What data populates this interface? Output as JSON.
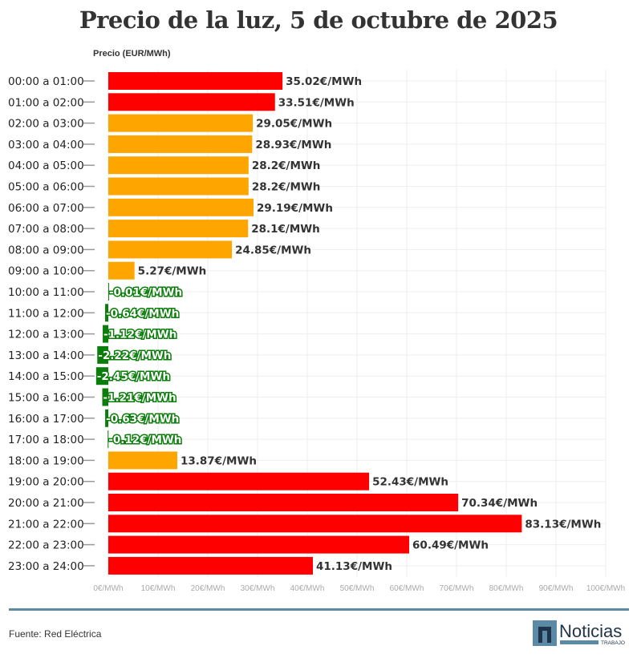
{
  "chart_data": {
    "type": "bar",
    "orientation": "horizontal",
    "title": "Precio de la luz, 5 de octubre de 2025",
    "ylabel": "Precio (EUR/MWh)",
    "xlim": [
      0,
      100
    ],
    "xticks": [
      "0€/MWh",
      "10€/MWh",
      "20€/MWh",
      "30€/MWh",
      "40€/MWh",
      "50€/MWh",
      "60€/MWh",
      "70€/MWh",
      "80€/MWh",
      "90€/MWh",
      "100€/MWh"
    ],
    "grid": true,
    "categories": [
      "00:00 a 01:00",
      "01:00 a 02:00",
      "02:00 a 03:00",
      "03:00 a 04:00",
      "04:00 a 05:00",
      "05:00 a 06:00",
      "06:00 a 07:00",
      "07:00 a 08:00",
      "08:00 a 09:00",
      "09:00 a 10:00",
      "10:00 a 11:00",
      "11:00 a 12:00",
      "12:00 a 13:00",
      "13:00 a 14:00",
      "14:00 a 15:00",
      "15:00 a 16:00",
      "16:00 a 17:00",
      "17:00 a 18:00",
      "18:00 a 19:00",
      "19:00 a 20:00",
      "20:00 a 21:00",
      "21:00 a 22:00",
      "22:00 a 23:00",
      "23:00 a 24:00"
    ],
    "values": [
      35.02,
      33.51,
      29.05,
      28.93,
      28.2,
      28.2,
      29.19,
      28.1,
      24.85,
      5.27,
      -0.01,
      -0.64,
      -1.12,
      -2.22,
      -2.45,
      -1.21,
      -0.63,
      -0.12,
      13.87,
      52.43,
      70.34,
      83.13,
      60.49,
      41.13
    ],
    "data_labels": [
      "35.02€/MWh",
      "33.51€/MWh",
      "29.05€/MWh",
      "28.93€/MWh",
      "28.2€/MWh",
      "28.2€/MWh",
      "29.19€/MWh",
      "28.1€/MWh",
      "24.85€/MWh",
      "5.27€/MWh",
      "-0.01€/MWh",
      "-0.64€/MWh",
      "-1.12€/MWh",
      "-2.22€/MWh",
      "-2.45€/MWh",
      "-1.21€/MWh",
      "-0.63€/MWh",
      "-0.12€/MWh",
      "13.87€/MWh",
      "52.43€/MWh",
      "70.34€/MWh",
      "83.13€/MWh",
      "60.49€/MWh",
      "41.13€/MWh"
    ],
    "colors": {
      "high": "#ff0000",
      "medium": "#ffa500",
      "negative": "#0a7d0a"
    },
    "color_groups": [
      "high",
      "high",
      "medium",
      "medium",
      "medium",
      "medium",
      "medium",
      "medium",
      "medium",
      "medium",
      "negative",
      "negative",
      "negative",
      "negative",
      "negative",
      "negative",
      "negative",
      "negative",
      "medium",
      "high",
      "high",
      "high",
      "high",
      "high"
    ]
  },
  "footer": {
    "source": "Fuente: Red Eléctrica",
    "logo_text": "Noticias",
    "logo_sub": "TRABAJO"
  }
}
